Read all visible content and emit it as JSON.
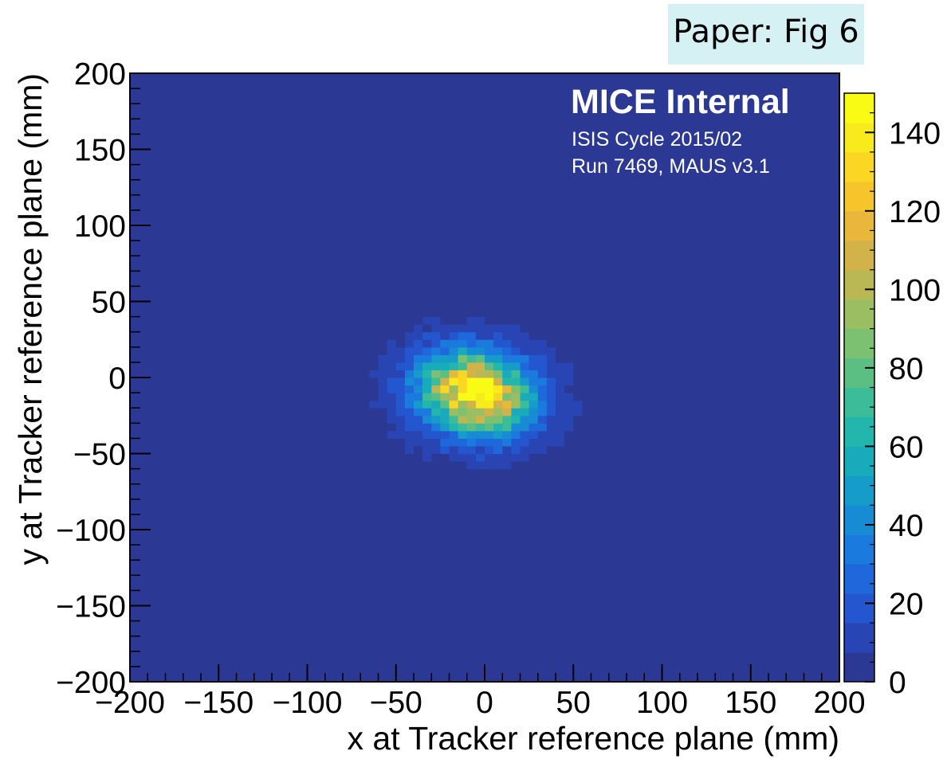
{
  "tag": {
    "label": "Paper: Fig 6"
  },
  "chart_data": {
    "type": "heatmap",
    "xlabel": "x at Tracker reference plane (mm)",
    "ylabel": "y at Tracker reference plane (mm)",
    "xlim": [
      -200,
      200
    ],
    "ylim": [
      -200,
      200
    ],
    "x_ticks": [
      "−200",
      "−150",
      "−100",
      "−50",
      "0",
      "50",
      "100",
      "150",
      "200"
    ],
    "y_ticks": [
      "−200",
      "−150",
      "−100",
      "−50",
      "0",
      "50",
      "100",
      "150",
      "200"
    ],
    "colorbar": {
      "range": [
        0,
        150
      ],
      "ticks": [
        "0",
        "20",
        "40",
        "60",
        "80",
        "100",
        "120",
        "140"
      ],
      "tick_values": [
        0,
        20,
        40,
        60,
        80,
        100,
        120,
        140
      ],
      "colors": [
        "#2b3995",
        "#2845b3",
        "#2356cf",
        "#1f68dc",
        "#1a7ade",
        "#178cd5",
        "#169cc9",
        "#18abbc",
        "#22b6ac",
        "#3cbc98",
        "#5bbf84",
        "#7cc072",
        "#9bbe62",
        "#bab855",
        "#d2b34a",
        "#e8b73b",
        "#f6c52c",
        "#fbd724",
        "#f7ea1d",
        "#f9fb14"
      ]
    },
    "distribution": {
      "description_center_mm": [
        -5,
        -10
      ],
      "bin_width_mm": 5,
      "peak_value": 140,
      "max_value_bin": [
        -7,
        -7
      ]
    },
    "watermark": {
      "title": "MICE Internal",
      "line1": "ISIS Cycle 2015/02",
      "line2": "Run 7469, MAUS v3.1"
    }
  }
}
